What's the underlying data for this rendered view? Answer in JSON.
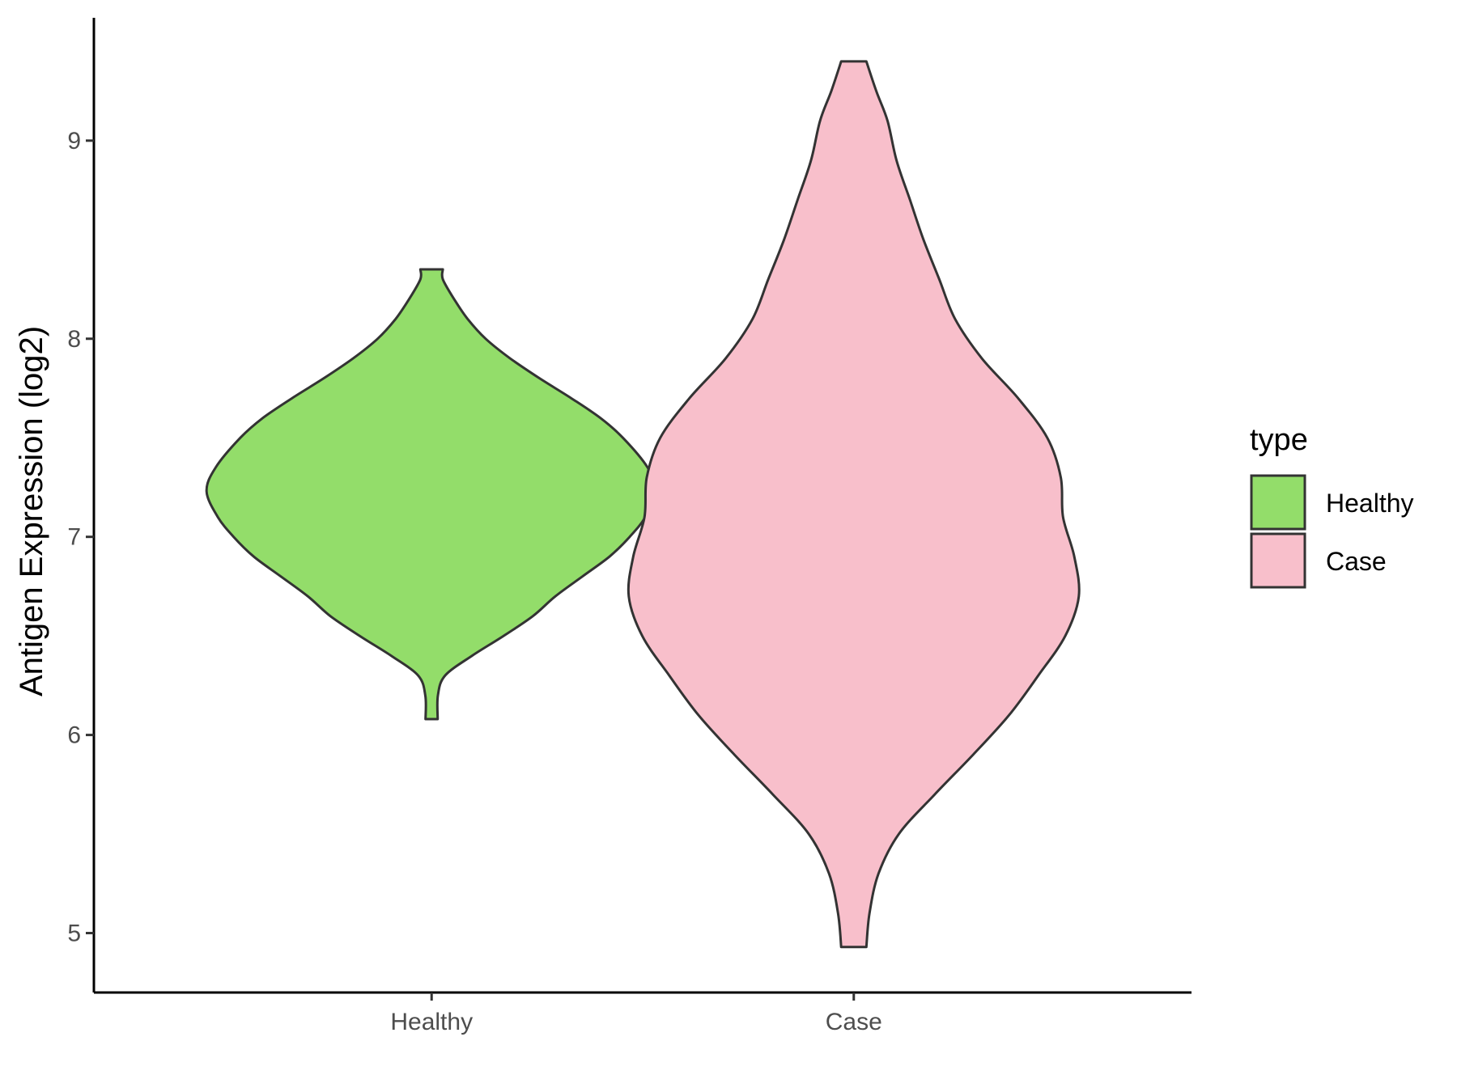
{
  "chart_data": {
    "type": "violin",
    "ylabel": "Antigen Expression (log2)",
    "xlabel": "",
    "categories": [
      "Healthy",
      "Case"
    ],
    "ylim": [
      4.7,
      9.62
    ],
    "yticks": [
      5,
      6,
      7,
      8,
      9
    ],
    "ytick_labels": [
      "5",
      "6",
      "7",
      "8",
      "9"
    ],
    "grid": false,
    "legend": {
      "title": "type",
      "position": "right",
      "items": [
        {
          "label": "Healthy",
          "color": "#93DD6A"
        },
        {
          "label": "Case",
          "color": "#F8BFCB"
        }
      ]
    },
    "series": [
      {
        "name": "Healthy",
        "color": "#93DD6A",
        "min": 6.08,
        "max": 8.35,
        "density_profile": [
          [
            6.08,
            0.027
          ],
          [
            6.2,
            0.028
          ],
          [
            6.3,
            0.06
          ],
          [
            6.4,
            0.18
          ],
          [
            6.5,
            0.32
          ],
          [
            6.6,
            0.45
          ],
          [
            6.7,
            0.55
          ],
          [
            6.8,
            0.67
          ],
          [
            6.9,
            0.79
          ],
          [
            7.0,
            0.88
          ],
          [
            7.1,
            0.95
          ],
          [
            7.23,
            1.0
          ],
          [
            7.35,
            0.96
          ],
          [
            7.5,
            0.85
          ],
          [
            7.6,
            0.75
          ],
          [
            7.7,
            0.62
          ],
          [
            7.8,
            0.48
          ],
          [
            7.9,
            0.35
          ],
          [
            8.0,
            0.24
          ],
          [
            8.1,
            0.16
          ],
          [
            8.2,
            0.1
          ],
          [
            8.3,
            0.05
          ],
          [
            8.35,
            0.05
          ]
        ]
      },
      {
        "name": "Case",
        "color": "#F8BFCB",
        "min": 4.93,
        "max": 9.4,
        "density_profile": [
          [
            4.93,
            0.056
          ],
          [
            5.1,
            0.07
          ],
          [
            5.3,
            0.11
          ],
          [
            5.5,
            0.2
          ],
          [
            5.7,
            0.36
          ],
          [
            5.9,
            0.53
          ],
          [
            6.1,
            0.69
          ],
          [
            6.3,
            0.82
          ],
          [
            6.5,
            0.94
          ],
          [
            6.7,
            1.0
          ],
          [
            6.9,
            0.98
          ],
          [
            7.1,
            0.93
          ],
          [
            7.3,
            0.92
          ],
          [
            7.5,
            0.86
          ],
          [
            7.7,
            0.73
          ],
          [
            7.9,
            0.57
          ],
          [
            8.1,
            0.45
          ],
          [
            8.3,
            0.38
          ],
          [
            8.5,
            0.31
          ],
          [
            8.7,
            0.25
          ],
          [
            8.9,
            0.19
          ],
          [
            9.1,
            0.15
          ],
          [
            9.25,
            0.1
          ],
          [
            9.4,
            0.056
          ]
        ]
      }
    ]
  }
}
